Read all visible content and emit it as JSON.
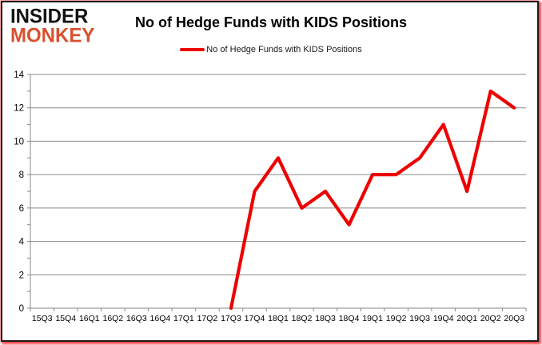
{
  "logo": {
    "line1": "INSIDER",
    "line2": "MONKEY"
  },
  "header": {
    "title": "No of Hedge Funds with KIDS Positions"
  },
  "legend": {
    "label": "No of Hedge Funds with KIDS Positions",
    "line_color": "#ee0000"
  },
  "colors": {
    "series_red": "#ee0000",
    "logo_red": "#d9502e",
    "logo_black": "#121212",
    "gridline_gray": "#898989",
    "frame_shadow_red": "#ed1c24",
    "background": "#ffffff"
  },
  "chart_data": {
    "type": "line",
    "title": "No of Hedge Funds with KIDS Positions",
    "xlabel": "",
    "ylabel": "",
    "categories": [
      "15Q3",
      "15Q4",
      "16Q1",
      "16Q2",
      "16Q3",
      "16Q4",
      "17Q1",
      "17Q2",
      "17Q3",
      "17Q4",
      "18Q1",
      "18Q2",
      "18Q3",
      "18Q4",
      "19Q1",
      "19Q2",
      "19Q3",
      "19Q4",
      "20Q1",
      "20Q2",
      "20Q3"
    ],
    "series": [
      {
        "name": "No of Hedge Funds with KIDS Positions",
        "color": "#ee0000",
        "values": [
          null,
          null,
          null,
          null,
          null,
          null,
          null,
          null,
          0,
          7,
          9,
          6,
          7,
          5,
          8,
          8,
          9,
          11,
          7,
          13,
          12
        ]
      }
    ],
    "ylim": [
      0,
      14
    ],
    "ytick_step": 2,
    "ytick_labels": [
      "0",
      "2",
      "4",
      "6",
      "8",
      "10",
      "12",
      "14"
    ],
    "grid": true,
    "legend_position": "top",
    "gridline_color": "#898989",
    "axis_text_color": "#000000"
  }
}
